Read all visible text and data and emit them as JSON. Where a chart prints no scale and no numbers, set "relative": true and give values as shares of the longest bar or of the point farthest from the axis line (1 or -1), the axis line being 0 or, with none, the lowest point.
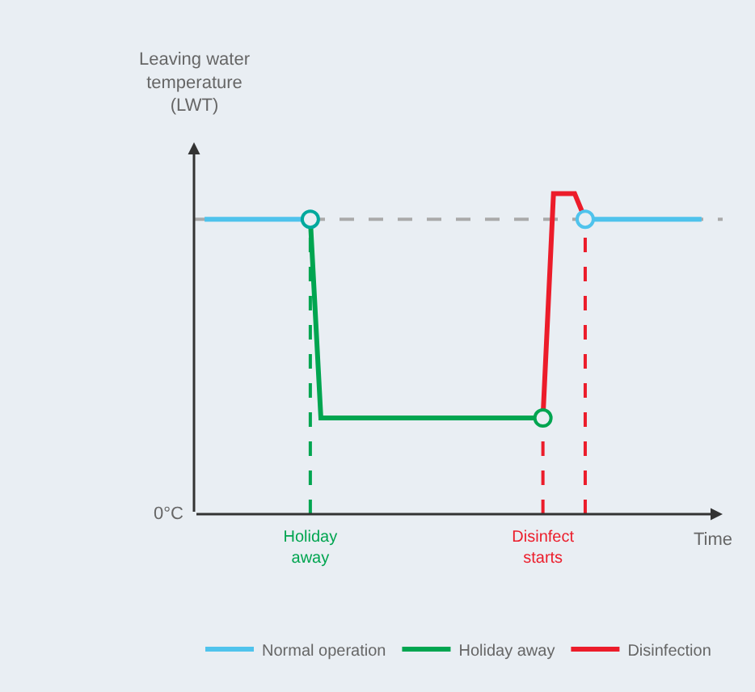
{
  "chart_data": {
    "type": "line",
    "relative": true,
    "xlabel": "Time",
    "ylabel": "Leaving water\ntemperature\n(LWT)",
    "legend": "bottom",
    "grid": false,
    "tick_labels": "x",
    "categories": [
      null,
      null,
      null,
      null,
      null,
      null,
      null,
      null,
      null,
      null,
      null,
      "Holiday\naway",
      null,
      null,
      null,
      null,
      null,
      null,
      null,
      null,
      null,
      null,
      null,
      null,
      null,
      null,
      null,
      null,
      null,
      null,
      null,
      null,
      null,
      "Disinfect\nstarts",
      null,
      null,
      null,
      null,
      null,
      null,
      null,
      null,
      null,
      null,
      null,
      null,
      null,
      null,
      null,
      null,
      null
    ],
    "series": [
      {
        "name": "Normal operation",
        "color": "#4fc3ec",
        "values": [
          null,
          0.92,
          0.92,
          0.92,
          0.92,
          0.92,
          0.92,
          0.92,
          0.92,
          0.92,
          0.92,
          0.92,
          null,
          null,
          null,
          null,
          null,
          null,
          null,
          null,
          null,
          null,
          null,
          null,
          null,
          null,
          null,
          null,
          null,
          null,
          null,
          null,
          null,
          null,
          null,
          null,
          null,
          0.92,
          0.92,
          0.92,
          0.92,
          0.92,
          0.92,
          0.92,
          0.92,
          0.92,
          0.92,
          0.92,
          0.92,
          null,
          null
        ]
      },
      {
        "name": "Holiday away",
        "color": "#00a550",
        "values": [
          null,
          null,
          null,
          null,
          null,
          null,
          null,
          null,
          null,
          null,
          null,
          0.92,
          0.3,
          0.3,
          0.3,
          0.3,
          0.3,
          0.3,
          0.3,
          0.3,
          0.3,
          0.3,
          0.3,
          0.3,
          0.3,
          0.3,
          0.3,
          0.3,
          0.3,
          0.3,
          0.3,
          0.3,
          0.3,
          0.3,
          null,
          null,
          null,
          null,
          null,
          null,
          null,
          null,
          null,
          null,
          null,
          null,
          null,
          null,
          null,
          null,
          null
        ]
      },
      {
        "name": "Disinfection",
        "color": "#ec1c2a",
        "values": [
          null,
          null,
          null,
          null,
          null,
          null,
          null,
          null,
          null,
          null,
          null,
          null,
          null,
          null,
          null,
          null,
          null,
          null,
          null,
          null,
          null,
          null,
          null,
          null,
          null,
          null,
          null,
          null,
          null,
          null,
          null,
          null,
          null,
          0.3,
          1,
          1,
          1,
          0.92,
          null,
          null,
          null,
          null,
          null,
          null,
          null,
          null,
          null,
          null,
          null,
          null,
          null
        ]
      },
      {
        "name": null,
        "type": "scatter",
        "marker": "circle",
        "colors": [
          null,
          null,
          null,
          null,
          null,
          null,
          null,
          null,
          null,
          null,
          null,
          "#00a99d",
          null,
          null,
          null,
          null,
          null,
          null,
          null,
          null,
          null,
          null,
          null,
          null,
          null,
          null,
          null,
          null,
          null,
          null,
          null,
          null,
          null,
          "#00a550",
          null,
          null,
          null,
          "#4fc3ec",
          null,
          null,
          null,
          null,
          null,
          null,
          null,
          null,
          null,
          null,
          null,
          null,
          null
        ],
        "values": [
          null,
          null,
          null,
          null,
          null,
          null,
          null,
          null,
          null,
          null,
          null,
          0.92,
          null,
          null,
          null,
          null,
          null,
          null,
          null,
          null,
          null,
          null,
          null,
          null,
          null,
          null,
          null,
          null,
          null,
          null,
          null,
          null,
          null,
          0.3,
          null,
          null,
          null,
          0.92,
          null,
          null,
          null,
          null,
          null,
          null,
          null,
          null,
          null,
          null,
          null,
          null,
          null
        ]
      }
    ],
    "ref_lines": [
      {
        "axis": "y",
        "value": 0.92,
        "label": null,
        "color": "#aaaaaa",
        "line_style": "dashed"
      }
    ],
    "annotations": [
      "0°C"
    ]
  }
}
